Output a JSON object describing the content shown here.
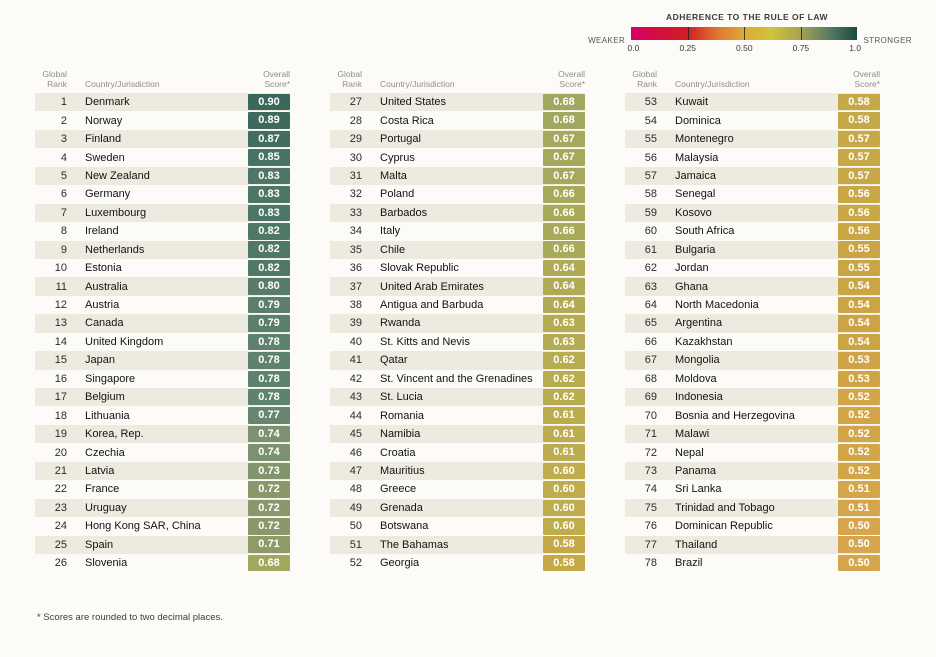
{
  "chart_data": {
    "type": "table",
    "legend": {
      "title": "ADHERENCE TO THE RULE OF LAW",
      "weaker": "WEAKER",
      "stronger": "STRONGER",
      "ticks": [
        "0.0",
        "0.25",
        "0.50",
        "0.75",
        "1.0"
      ],
      "gradient_stops": [
        "#d6006a 0%",
        "#d40e3d 12%",
        "#d01f26 25%",
        "#dd7630 38%",
        "#dcab34 50%",
        "#d3c13c 62%",
        "#a4a452 75%",
        "#5c7e63 87%",
        "#1b4a42 100%"
      ]
    },
    "headers": {
      "rank": "Global\nRank",
      "country": "Country/Jurisdiction",
      "score": "Overall\nScore*"
    },
    "score_color_scale": [
      [
        0.5,
        "#d7a54b"
      ],
      [
        0.54,
        "#cda443"
      ],
      [
        0.58,
        "#c6a947"
      ],
      [
        0.6,
        "#bfad4d"
      ],
      [
        0.63,
        "#b5ab52"
      ],
      [
        0.66,
        "#a9a95a"
      ],
      [
        0.68,
        "#a2a75f"
      ],
      [
        0.71,
        "#909a69"
      ],
      [
        0.74,
        "#7b9170"
      ],
      [
        0.78,
        "#5f826e"
      ],
      [
        0.8,
        "#577c6a"
      ],
      [
        0.82,
        "#507867"
      ],
      [
        0.85,
        "#487263"
      ],
      [
        0.87,
        "#426d60"
      ],
      [
        0.9,
        "#3a685c"
      ]
    ],
    "columns": [
      [
        {
          "rank": 1,
          "country": "Denmark",
          "score": "0.90"
        },
        {
          "rank": 2,
          "country": "Norway",
          "score": "0.89"
        },
        {
          "rank": 3,
          "country": "Finland",
          "score": "0.87"
        },
        {
          "rank": 4,
          "country": "Sweden",
          "score": "0.85"
        },
        {
          "rank": 5,
          "country": "New Zealand",
          "score": "0.83"
        },
        {
          "rank": 6,
          "country": "Germany",
          "score": "0.83"
        },
        {
          "rank": 7,
          "country": "Luxembourg",
          "score": "0.83"
        },
        {
          "rank": 8,
          "country": "Ireland",
          "score": "0.82"
        },
        {
          "rank": 9,
          "country": "Netherlands",
          "score": "0.82"
        },
        {
          "rank": 10,
          "country": "Estonia",
          "score": "0.82"
        },
        {
          "rank": 11,
          "country": "Australia",
          "score": "0.80"
        },
        {
          "rank": 12,
          "country": "Austria",
          "score": "0.79"
        },
        {
          "rank": 13,
          "country": "Canada",
          "score": "0.79"
        },
        {
          "rank": 14,
          "country": "United Kingdom",
          "score": "0.78"
        },
        {
          "rank": 15,
          "country": "Japan",
          "score": "0.78"
        },
        {
          "rank": 16,
          "country": "Singapore",
          "score": "0.78"
        },
        {
          "rank": 17,
          "country": "Belgium",
          "score": "0.78"
        },
        {
          "rank": 18,
          "country": "Lithuania",
          "score": "0.77"
        },
        {
          "rank": 19,
          "country": "Korea, Rep.",
          "score": "0.74"
        },
        {
          "rank": 20,
          "country": "Czechia",
          "score": "0.74"
        },
        {
          "rank": 21,
          "country": "Latvia",
          "score": "0.73"
        },
        {
          "rank": 22,
          "country": "France",
          "score": "0.72"
        },
        {
          "rank": 23,
          "country": "Uruguay",
          "score": "0.72"
        },
        {
          "rank": 24,
          "country": "Hong Kong SAR, China",
          "score": "0.72"
        },
        {
          "rank": 25,
          "country": "Spain",
          "score": "0.71"
        },
        {
          "rank": 26,
          "country": "Slovenia",
          "score": "0.68"
        }
      ],
      [
        {
          "rank": 27,
          "country": "United States",
          "score": "0.68"
        },
        {
          "rank": 28,
          "country": "Costa Rica",
          "score": "0.68"
        },
        {
          "rank": 29,
          "country": "Portugal",
          "score": "0.67"
        },
        {
          "rank": 30,
          "country": "Cyprus",
          "score": "0.67"
        },
        {
          "rank": 31,
          "country": "Malta",
          "score": "0.67"
        },
        {
          "rank": 32,
          "country": "Poland",
          "score": "0.66"
        },
        {
          "rank": 33,
          "country": "Barbados",
          "score": "0.66"
        },
        {
          "rank": 34,
          "country": "Italy",
          "score": "0.66"
        },
        {
          "rank": 35,
          "country": "Chile",
          "score": "0.66"
        },
        {
          "rank": 36,
          "country": "Slovak Republic",
          "score": "0.64"
        },
        {
          "rank": 37,
          "country": "United Arab Emirates",
          "score": "0.64"
        },
        {
          "rank": 38,
          "country": "Antigua and Barbuda",
          "score": "0.64"
        },
        {
          "rank": 39,
          "country": "Rwanda",
          "score": "0.63"
        },
        {
          "rank": 40,
          "country": "St. Kitts and Nevis",
          "score": "0.63"
        },
        {
          "rank": 41,
          "country": "Qatar",
          "score": "0.62"
        },
        {
          "rank": 42,
          "country": "St. Vincent and the Grenadines",
          "score": "0.62"
        },
        {
          "rank": 43,
          "country": "St. Lucia",
          "score": "0.62"
        },
        {
          "rank": 44,
          "country": "Romania",
          "score": "0.61"
        },
        {
          "rank": 45,
          "country": "Namibia",
          "score": "0.61"
        },
        {
          "rank": 46,
          "country": "Croatia",
          "score": "0.61"
        },
        {
          "rank": 47,
          "country": "Mauritius",
          "score": "0.60"
        },
        {
          "rank": 48,
          "country": "Greece",
          "score": "0.60"
        },
        {
          "rank": 49,
          "country": "Grenada",
          "score": "0.60"
        },
        {
          "rank": 50,
          "country": "Botswana",
          "score": "0.60"
        },
        {
          "rank": 51,
          "country": "The Bahamas",
          "score": "0.58"
        },
        {
          "rank": 52,
          "country": "Georgia",
          "score": "0.58"
        }
      ],
      [
        {
          "rank": 53,
          "country": "Kuwait",
          "score": "0.58"
        },
        {
          "rank": 54,
          "country": "Dominica",
          "score": "0.58"
        },
        {
          "rank": 55,
          "country": "Montenegro",
          "score": "0.57"
        },
        {
          "rank": 56,
          "country": "Malaysia",
          "score": "0.57"
        },
        {
          "rank": 57,
          "country": "Jamaica",
          "score": "0.57"
        },
        {
          "rank": 58,
          "country": "Senegal",
          "score": "0.56"
        },
        {
          "rank": 59,
          "country": "Kosovo",
          "score": "0.56"
        },
        {
          "rank": 60,
          "country": "South Africa",
          "score": "0.56"
        },
        {
          "rank": 61,
          "country": "Bulgaria",
          "score": "0.55"
        },
        {
          "rank": 62,
          "country": "Jordan",
          "score": "0.55"
        },
        {
          "rank": 63,
          "country": "Ghana",
          "score": "0.54"
        },
        {
          "rank": 64,
          "country": "North Macedonia",
          "score": "0.54"
        },
        {
          "rank": 65,
          "country": "Argentina",
          "score": "0.54"
        },
        {
          "rank": 66,
          "country": "Kazakhstan",
          "score": "0.54"
        },
        {
          "rank": 67,
          "country": "Mongolia",
          "score": "0.53"
        },
        {
          "rank": 68,
          "country": "Moldova",
          "score": "0.53"
        },
        {
          "rank": 69,
          "country": "Indonesia",
          "score": "0.52"
        },
        {
          "rank": 70,
          "country": "Bosnia and Herzegovina",
          "score": "0.52"
        },
        {
          "rank": 71,
          "country": "Malawi",
          "score": "0.52"
        },
        {
          "rank": 72,
          "country": "Nepal",
          "score": "0.52"
        },
        {
          "rank": 73,
          "country": "Panama",
          "score": "0.52"
        },
        {
          "rank": 74,
          "country": "Sri Lanka",
          "score": "0.51"
        },
        {
          "rank": 75,
          "country": "Trinidad and Tobago",
          "score": "0.51"
        },
        {
          "rank": 76,
          "country": "Dominican Republic",
          "score": "0.50"
        },
        {
          "rank": 77,
          "country": "Thailand",
          "score": "0.50"
        },
        {
          "rank": 78,
          "country": "Brazil",
          "score": "0.50"
        }
      ]
    ],
    "footnote": "* Scores are rounded to two decimal places.",
    "colors": {
      "page_bg": "#fcfbf7",
      "row_stripe": "#edebe0",
      "badge_text": "#ffffff",
      "header_text": "#8f8d86"
    }
  }
}
